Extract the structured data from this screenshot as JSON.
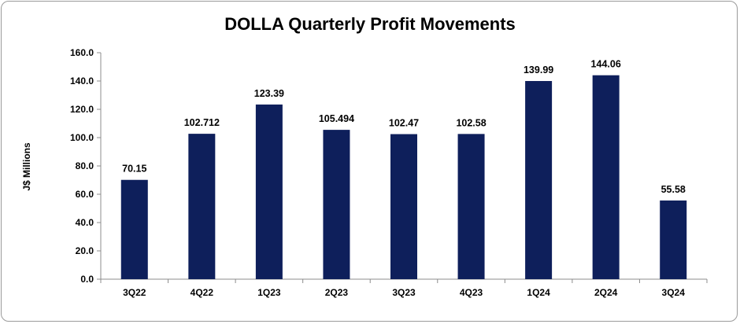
{
  "chart_data": {
    "type": "bar",
    "title": "DOLLA Quarterly Profit Movements",
    "xlabel": "",
    "ylabel": "J$ Millions",
    "categories": [
      "3Q22",
      "4Q22",
      "1Q23",
      "2Q23",
      "3Q23",
      "4Q23",
      "1Q24",
      "2Q24",
      "3Q24"
    ],
    "values": [
      70.15,
      102.712,
      123.39,
      105.494,
      102.47,
      102.58,
      139.99,
      144.06,
      55.58
    ],
    "value_labels": [
      "70.15",
      "102.712",
      "123.39",
      "105.494",
      "102.47",
      "102.58",
      "139.99",
      "144.06",
      "55.58"
    ],
    "ylim": [
      0,
      160
    ],
    "yticks": [
      "0.0",
      "20.0",
      "40.0",
      "60.0",
      "80.0",
      "100.0",
      "120.0",
      "140.0",
      "160.0"
    ],
    "grid": false,
    "legend": "none",
    "bar_color": "#0e1f5b"
  }
}
